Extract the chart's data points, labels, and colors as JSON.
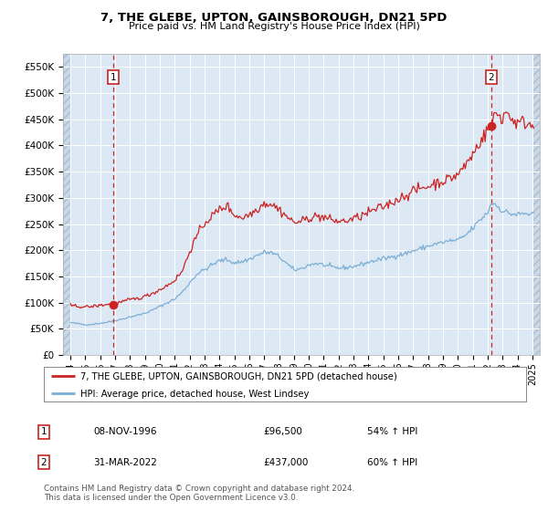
{
  "title": "7, THE GLEBE, UPTON, GAINSBOROUGH, DN21 5PD",
  "subtitle": "Price paid vs. HM Land Registry's House Price Index (HPI)",
  "hpi_label": "HPI: Average price, detached house, West Lindsey",
  "property_label": "7, THE GLEBE, UPTON, GAINSBOROUGH, DN21 5PD (detached house)",
  "red_line_color": "#cc2222",
  "blue_line_color": "#7bafd4",
  "bg_color": "#dce9f5",
  "grid_color": "#ffffff",
  "marker1_date_num": 1996.86,
  "marker1_value": 96500,
  "marker1_label": "1",
  "marker1_date_str": "08-NOV-1996",
  "marker1_price_str": "£96,500",
  "marker1_hpi_str": "54% ↑ HPI",
  "marker2_date_num": 2022.25,
  "marker2_value": 437000,
  "marker2_label": "2",
  "marker2_date_str": "31-MAR-2022",
  "marker2_price_str": "£437,000",
  "marker2_hpi_str": "60% ↑ HPI",
  "xmin": 1993.5,
  "xmax": 2025.5,
  "ymin": 0,
  "ymax": 575000,
  "yticks": [
    0,
    50000,
    100000,
    150000,
    200000,
    250000,
    300000,
    350000,
    400000,
    450000,
    500000,
    550000
  ],
  "xticks": [
    1994,
    1995,
    1996,
    1997,
    1998,
    1999,
    2000,
    2001,
    2002,
    2003,
    2004,
    2005,
    2006,
    2007,
    2008,
    2009,
    2010,
    2011,
    2012,
    2013,
    2014,
    2015,
    2016,
    2017,
    2018,
    2019,
    2020,
    2021,
    2022,
    2023,
    2024,
    2025
  ],
  "footnote": "Contains HM Land Registry data © Crown copyright and database right 2024.\nThis data is licensed under the Open Government Licence v3.0."
}
